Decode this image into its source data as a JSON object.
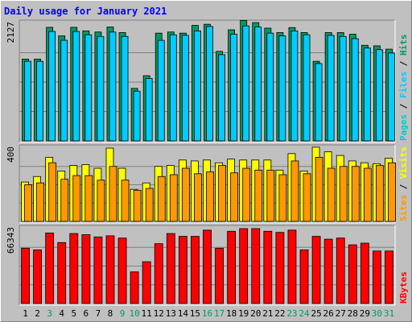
{
  "chart_data": {
    "title": "Daily usage for January 2021",
    "type": "bar",
    "categories": [
      "1",
      "2",
      "3",
      "4",
      "5",
      "6",
      "7",
      "8",
      "9",
      "10",
      "11",
      "12",
      "13",
      "14",
      "15",
      "16",
      "17",
      "18",
      "19",
      "20",
      "21",
      "22",
      "23",
      "24",
      "25",
      "26",
      "27",
      "28",
      "29",
      "30",
      "31"
    ],
    "weekend_days": [
      "3",
      "9",
      "10",
      "16",
      "17",
      "23",
      "24",
      "30",
      "31"
    ],
    "colors": {
      "hits": "#009966",
      "files": "#00ccff",
      "pages": "#00cccc",
      "visits": "#ffff00",
      "sites": "#ff9900",
      "kbytes": "#ff0000",
      "weekend": "#009966",
      "weekday": "#000000"
    },
    "panels": [
      {
        "id": "hits-files-pages",
        "ymax_label": "2127",
        "ymax": 2127,
        "legend": [
          {
            "text": "Pages",
            "color": "#00cccc"
          },
          {
            "text": " / ",
            "color": "#000000"
          },
          {
            "text": "Files",
            "color": "#00ccff"
          },
          {
            "text": " / ",
            "color": "#000000"
          },
          {
            "text": "Hits",
            "color": "#009966"
          }
        ],
        "series": [
          {
            "name": "Hits",
            "color": "#009966",
            "values": [
              1480,
              1480,
              2055,
              1900,
              2055,
              1990,
              1970,
              2060,
              1960,
              950,
              1180,
              1950,
              1970,
              1950,
              2090,
              2110,
              1620,
              2010,
              2180,
              2140,
              2040,
              1960,
              2050,
              1960,
              1440,
              1960,
              1960,
              1930,
              1730,
              1720,
              1660
            ]
          },
          {
            "name": "Files",
            "color": "#00ccff",
            "values": [
              1440,
              1440,
              1980,
              1820,
              1980,
              1920,
              1890,
              1970,
              1890,
              900,
              1130,
              1820,
              1920,
              1910,
              1990,
              2070,
              1560,
              1930,
              2080,
              2060,
              1950,
              1900,
              1990,
              1920,
              1400,
              1910,
              1890,
              1850,
              1680,
              1650,
              1590
            ]
          },
          {
            "name": "Pages",
            "color": "#00cccc",
            "values": [
              1440,
              1440,
              1980,
              1820,
              1980,
              1920,
              1890,
              1970,
              1890,
              900,
              1130,
              1820,
              1920,
              1910,
              1990,
              2070,
              1560,
              1930,
              2080,
              2060,
              1950,
              1900,
              1990,
              1920,
              1400,
              1910,
              1890,
              1850,
              1680,
              1650,
              1590
            ]
          }
        ]
      },
      {
        "id": "visits-sites",
        "ymax_label": "400",
        "ymax": 400,
        "legend": [
          {
            "text": "Sites",
            "color": "#ff9900"
          },
          {
            "text": " / ",
            "color": "#000000"
          },
          {
            "text": "Visits",
            "color": "#ffff00"
          }
        ],
        "series": [
          {
            "name": "Visits",
            "color": "#ffff00",
            "values": [
              215,
              245,
              350,
              275,
              305,
              310,
              290,
              400,
              290,
              175,
              210,
              300,
              305,
              335,
              330,
              335,
              320,
              340,
              335,
              335,
              335,
              280,
              370,
              275,
              405,
              380,
              360,
              330,
              320,
              315,
              345
            ]
          },
          {
            "name": "Sites",
            "color": "#ff9900",
            "values": [
              200,
              210,
              320,
              230,
              250,
              250,
              225,
              300,
              225,
              170,
              180,
              245,
              255,
              290,
              260,
              270,
              305,
              265,
              290,
              280,
              280,
              255,
              330,
              260,
              350,
              290,
              300,
              300,
              290,
              305,
              320
            ]
          }
        ]
      },
      {
        "id": "kbytes",
        "ymax_label": "66343",
        "ymax": 66343,
        "legend": [
          {
            "text": "KBytes",
            "color": "#ff0000"
          }
        ],
        "series": [
          {
            "name": "KBytes",
            "color": "#ff0000",
            "values": [
              49000,
              47500,
              62500,
              54000,
              62000,
              61000,
              59000,
              60000,
              58000,
              28000,
              37000,
              53000,
              62000,
              59500,
              59500,
              65000,
              49000,
              64000,
              66343,
              66343,
              64000,
              63000,
              65000,
              47500,
              59500,
              57000,
              58000,
              52000,
              53500,
              46500,
              46500
            ]
          }
        ]
      }
    ]
  }
}
